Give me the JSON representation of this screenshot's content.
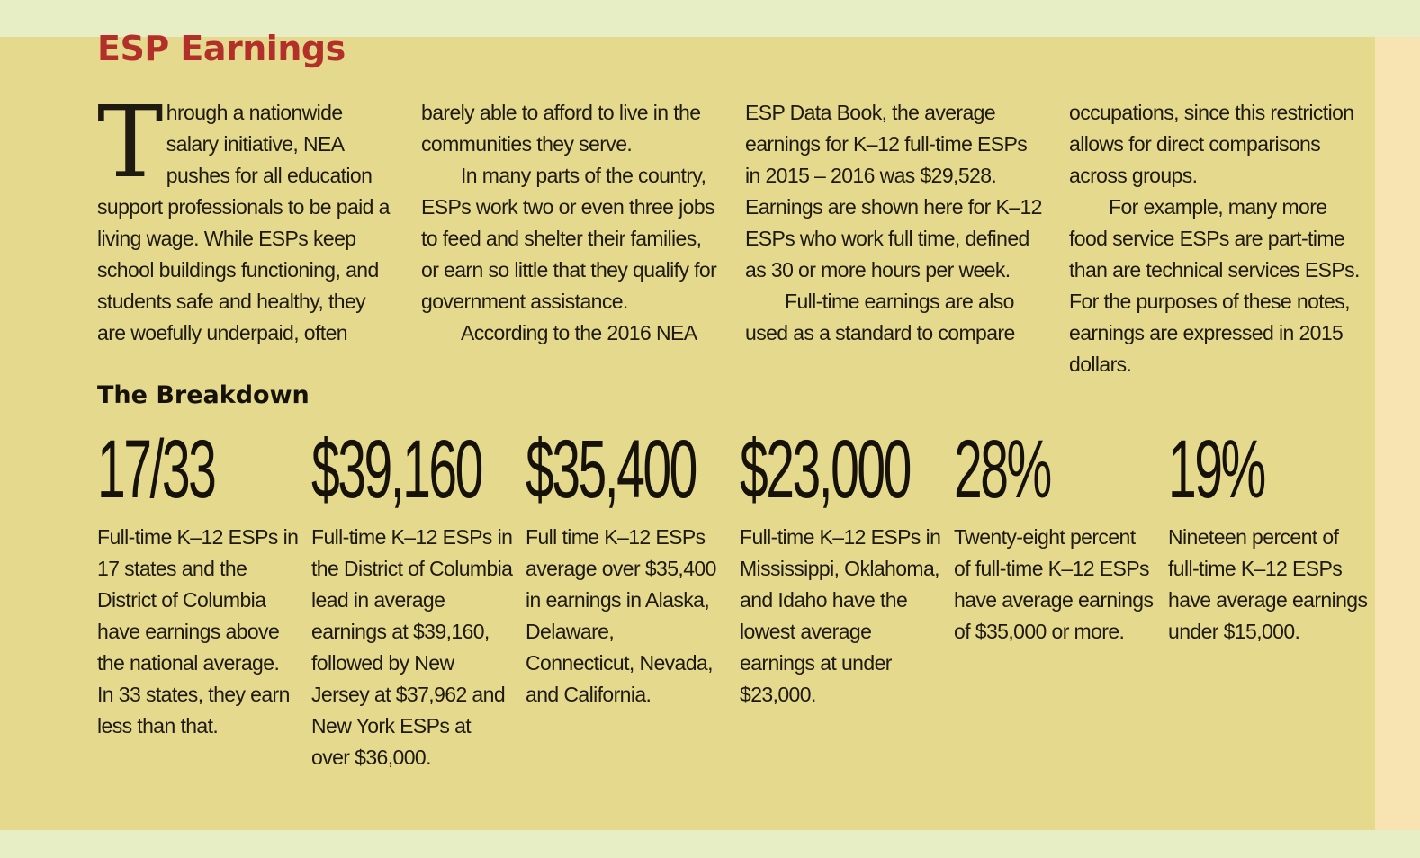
{
  "header": {
    "title": "ESP Earnings"
  },
  "intro": {
    "dropcap": "T",
    "col1": "hrough a nationwide salary initiative, NEA pushes for all education support professionals to be paid a living wage. While ESPs keep school buildings functioning, and students safe and healthy, they are woefully underpaid, often",
    "col2_p1": "barely able to afford to live in the communities they serve.",
    "col2_p2": "In many parts of the country, ESPs work two or even three jobs to feed and shelter their families, or earn so little that they qualify for government assistance.",
    "col2_p3": "According to the 2016 NEA",
    "col3_p1": "ESP Data Book, the average earnings for K–12 full-time ESPs in 2015 – 2016 was $29,528. Earnings are shown here for K–12 ESPs who work full time, defined as 30 or more hours per week.",
    "col3_p2": "Full-time earnings are also used as a standard to compare",
    "col4_p1": "occupations, since this restriction allows for direct comparisons across groups.",
    "col4_p2": "For example, many more food service ESPs are part-time than are technical services ESPs. For the purposes of these notes, earnings are expressed in 2015 dollars."
  },
  "breakdown": {
    "heading": "The Breakdown",
    "stats": [
      {
        "value": "17/33",
        "desc": "Full-time K–12 ESPs in 17 states and the District of Columbia have earnings above the national average. In 33 states, they earn less than that."
      },
      {
        "value": "$39,160",
        "desc": "Full-time K–12 ESPs in the District of Columbia lead in average earnings at $39,160, followed by New Jersey at $37,962 and New York ESPs at over $36,000."
      },
      {
        "value": "$35,400",
        "desc": "Full time K–12 ESPs average over $35,400 in earnings in Alaska, Delaware, Connecticut, Nevada, and California."
      },
      {
        "value": "$23,000",
        "desc": "Full-time K–12 ESPs in Mississippi, Oklahoma, and Idaho have the lowest average earnings at under $23,000."
      },
      {
        "value": "28%",
        "desc": "Twenty-eight percent of full-time K–12 ESPs have average earnings of $35,000 or more."
      },
      {
        "value": "19%",
        "desc": "Nineteen percent of full-time K–12 ESPs have average earnings under $15,000."
      }
    ]
  },
  "colors": {
    "title": "#b3302a",
    "panel": "#e4d98d",
    "page": "#e7eec6",
    "strip": "#f8e4b2"
  }
}
